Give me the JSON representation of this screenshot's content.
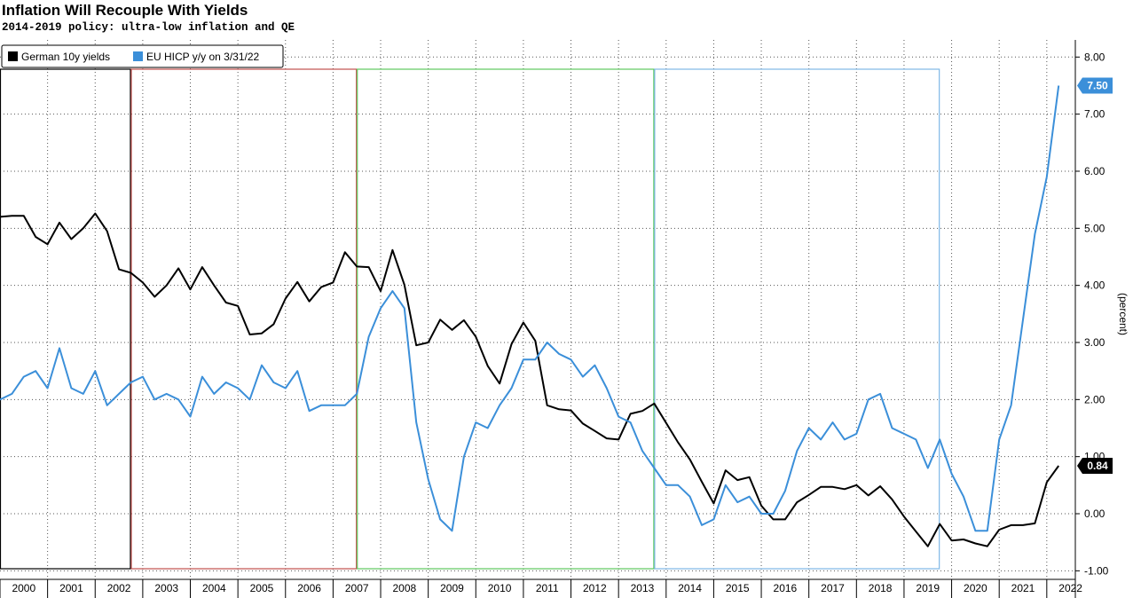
{
  "title": "Inflation Will Recouple With Yields",
  "subtitle": "2014-2019 policy: ultra-low inflation and QE",
  "chart_data": {
    "type": "line",
    "ylabel": "(percent)",
    "xlabel": "",
    "xlim": [
      2000,
      2022.6
    ],
    "ylim": [
      -1.15,
      8.3
    ],
    "y_ticks": [
      "8.00",
      "7.00",
      "6.00",
      "5.00",
      "4.00",
      "3.00",
      "2.00",
      "1.00",
      "0.00",
      "-1.00"
    ],
    "x_ticks": [
      "2000",
      "2001",
      "2002",
      "2003",
      "2004",
      "2005",
      "2006",
      "2007",
      "2008",
      "2009",
      "2010",
      "2011",
      "2012",
      "2013",
      "2014",
      "2015",
      "2016",
      "2017",
      "2018",
      "2019",
      "2020",
      "2021",
      "2022"
    ],
    "grid": true,
    "legend_position": "top-left",
    "legend": [
      {
        "label": "German 10y yields",
        "color": "#000000"
      },
      {
        "label": "EU HICP y/y on 3/31/22",
        "color": "#3b8fd9"
      }
    ],
    "last_value_tags": [
      {
        "label": "7.50",
        "series": "EU HICP y/y on 3/31/22",
        "bg": "#3b8fd9",
        "fg": "#ffffff"
      },
      {
        "label": "0.84",
        "series": "German 10y yields",
        "bg": "#000000",
        "fg": "#ffffff"
      }
    ],
    "regions": [
      {
        "x0": 2000,
        "x1": 2002.75,
        "color": "#000000"
      },
      {
        "x0": 2002.75,
        "x1": 2007.5,
        "color": "#c0504d"
      },
      {
        "x0": 2007.5,
        "x1": 2013.75,
        "color": "#5ec85e"
      },
      {
        "x0": 2013.75,
        "x1": 2019.75,
        "color": "#7fb8e6"
      }
    ],
    "series": [
      {
        "name": "German 10y yields",
        "color": "#000000",
        "x": [
          2000.0,
          2000.25,
          2000.5,
          2000.75,
          2001.0,
          2001.25,
          2001.5,
          2001.75,
          2002.0,
          2002.25,
          2002.5,
          2002.75,
          2003.0,
          2003.25,
          2003.5,
          2003.75,
          2004.0,
          2004.25,
          2004.5,
          2004.75,
          2005.0,
          2005.25,
          2005.5,
          2005.75,
          2006.0,
          2006.25,
          2006.5,
          2006.75,
          2007.0,
          2007.25,
          2007.5,
          2007.75,
          2008.0,
          2008.25,
          2008.5,
          2008.75,
          2009.0,
          2009.25,
          2009.5,
          2009.75,
          2010.0,
          2010.25,
          2010.5,
          2010.75,
          2011.0,
          2011.25,
          2011.5,
          2011.75,
          2012.0,
          2012.25,
          2012.5,
          2012.75,
          2013.0,
          2013.25,
          2013.5,
          2013.75,
          2014.0,
          2014.25,
          2014.5,
          2014.75,
          2015.0,
          2015.25,
          2015.5,
          2015.75,
          2016.0,
          2016.25,
          2016.5,
          2016.75,
          2017.0,
          2017.25,
          2017.5,
          2017.75,
          2018.0,
          2018.25,
          2018.5,
          2018.75,
          2019.0,
          2019.25,
          2019.5,
          2019.75,
          2020.0,
          2020.25,
          2020.5,
          2020.75,
          2021.0,
          2021.25,
          2021.5,
          2021.75,
          2022.0,
          2022.25
        ],
        "values": [
          5.2,
          5.22,
          5.22,
          4.85,
          4.72,
          5.1,
          4.81,
          5.0,
          5.26,
          4.95,
          4.28,
          4.22,
          4.05,
          3.8,
          4.0,
          4.3,
          3.93,
          4.32,
          4.0,
          3.7,
          3.64,
          3.14,
          3.16,
          3.32,
          3.77,
          4.06,
          3.72,
          3.97,
          4.05,
          4.58,
          4.33,
          4.32,
          3.9,
          4.62,
          4.01,
          2.95,
          3.0,
          3.4,
          3.22,
          3.39,
          3.1,
          2.59,
          2.28,
          2.97,
          3.35,
          3.03,
          1.9,
          1.83,
          1.81,
          1.58,
          1.45,
          1.32,
          1.3,
          1.75,
          1.8,
          1.93,
          1.59,
          1.25,
          0.95,
          0.56,
          0.18,
          0.76,
          0.59,
          0.64,
          0.14,
          -0.1,
          -0.1,
          0.2,
          0.33,
          0.47,
          0.47,
          0.43,
          0.5,
          0.32,
          0.48,
          0.25,
          -0.05,
          -0.31,
          -0.57,
          -0.18,
          -0.47,
          -0.45,
          -0.52,
          -0.57,
          -0.28,
          -0.2,
          -0.2,
          -0.17,
          0.55,
          0.84
        ]
      },
      {
        "name": "EU HICP y/y on 3/31/22",
        "color": "#3b8fd9",
        "x": [
          2000.0,
          2000.25,
          2000.5,
          2000.75,
          2001.0,
          2001.25,
          2001.5,
          2001.75,
          2002.0,
          2002.25,
          2002.5,
          2002.75,
          2003.0,
          2003.25,
          2003.5,
          2003.75,
          2004.0,
          2004.25,
          2004.5,
          2004.75,
          2005.0,
          2005.25,
          2005.5,
          2005.75,
          2006.0,
          2006.25,
          2006.5,
          2006.75,
          2007.0,
          2007.25,
          2007.5,
          2007.75,
          2008.0,
          2008.25,
          2008.5,
          2008.75,
          2009.0,
          2009.25,
          2009.5,
          2009.75,
          2010.0,
          2010.25,
          2010.5,
          2010.75,
          2011.0,
          2011.25,
          2011.5,
          2011.75,
          2012.0,
          2012.25,
          2012.5,
          2012.75,
          2013.0,
          2013.25,
          2013.5,
          2013.75,
          2014.0,
          2014.25,
          2014.5,
          2014.75,
          2015.0,
          2015.25,
          2015.5,
          2015.75,
          2016.0,
          2016.25,
          2016.5,
          2016.75,
          2017.0,
          2017.25,
          2017.5,
          2017.75,
          2018.0,
          2018.25,
          2018.5,
          2018.75,
          2019.0,
          2019.25,
          2019.5,
          2019.75,
          2020.0,
          2020.25,
          2020.5,
          2020.75,
          2021.0,
          2021.25,
          2021.5,
          2021.75,
          2022.0,
          2022.25
        ],
        "values": [
          2.0,
          2.1,
          2.4,
          2.5,
          2.2,
          2.9,
          2.2,
          2.1,
          2.5,
          1.9,
          2.1,
          2.3,
          2.4,
          2.0,
          2.1,
          2.0,
          1.7,
          2.4,
          2.1,
          2.3,
          2.2,
          2.0,
          2.6,
          2.3,
          2.2,
          2.5,
          1.8,
          1.9,
          1.9,
          1.9,
          2.1,
          3.1,
          3.6,
          3.9,
          3.6,
          1.6,
          0.6,
          -0.1,
          -0.3,
          1.0,
          1.6,
          1.5,
          1.9,
          2.2,
          2.7,
          2.7,
          3.0,
          2.8,
          2.7,
          2.4,
          2.6,
          2.2,
          1.7,
          1.6,
          1.1,
          0.8,
          0.5,
          0.5,
          0.3,
          -0.2,
          -0.1,
          0.5,
          0.2,
          0.3,
          0.0,
          0.0,
          0.4,
          1.1,
          1.5,
          1.3,
          1.6,
          1.3,
          1.4,
          2.0,
          2.1,
          1.5,
          1.4,
          1.3,
          0.8,
          1.3,
          0.7,
          0.3,
          -0.3,
          -0.3,
          1.3,
          1.9,
          3.4,
          4.9,
          5.9,
          7.5
        ]
      }
    ]
  }
}
